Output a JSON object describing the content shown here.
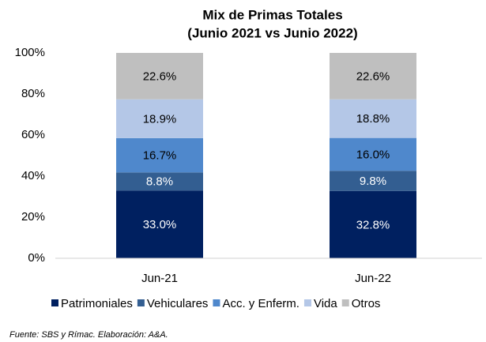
{
  "chart_data": {
    "type": "stacked_bar",
    "title": "Mix de Primas Totales",
    "subtitle": "(Junio 2021 vs Junio 2022)",
    "categories": [
      "Jun-21",
      "Jun-22"
    ],
    "series": [
      {
        "name": "Patrimoniales",
        "color": "#002060",
        "label_color": "#ffffff",
        "values": [
          33.0,
          32.8
        ],
        "value_labels": [
          "33.0%",
          "32.8%"
        ]
      },
      {
        "name": "Vehiculares",
        "color": "#335e91",
        "label_color": "#ffffff",
        "values": [
          8.8,
          9.8
        ],
        "value_labels": [
          "8.8%",
          "9.8%"
        ]
      },
      {
        "name": "Acc. y Enferm.",
        "color": "#4f88cc",
        "label_color": "#000000",
        "values": [
          16.7,
          16.0
        ],
        "value_labels": [
          "16.7%",
          "16.0%"
        ]
      },
      {
        "name": "Vida",
        "color": "#b4c7e7",
        "label_color": "#000000",
        "values": [
          18.9,
          18.8
        ],
        "value_labels": [
          "18.9%",
          "18.8%"
        ]
      },
      {
        "name": "Otros",
        "color": "#bfbfbf",
        "label_color": "#000000",
        "values": [
          22.6,
          22.6
        ],
        "value_labels": [
          "22.6%",
          "22.6%"
        ]
      }
    ],
    "ylim": [
      0,
      100
    ],
    "yticks": [
      {
        "value": 0,
        "label": "0%"
      },
      {
        "value": 20,
        "label": "20%"
      },
      {
        "value": 40,
        "label": "40%"
      },
      {
        "value": 60,
        "label": "60%"
      },
      {
        "value": 80,
        "label": "80%"
      },
      {
        "value": 100,
        "label": "100%"
      }
    ],
    "legend": "bottom",
    "source": "Fuente: SBS y Rímac. Elaboración: A&A."
  }
}
